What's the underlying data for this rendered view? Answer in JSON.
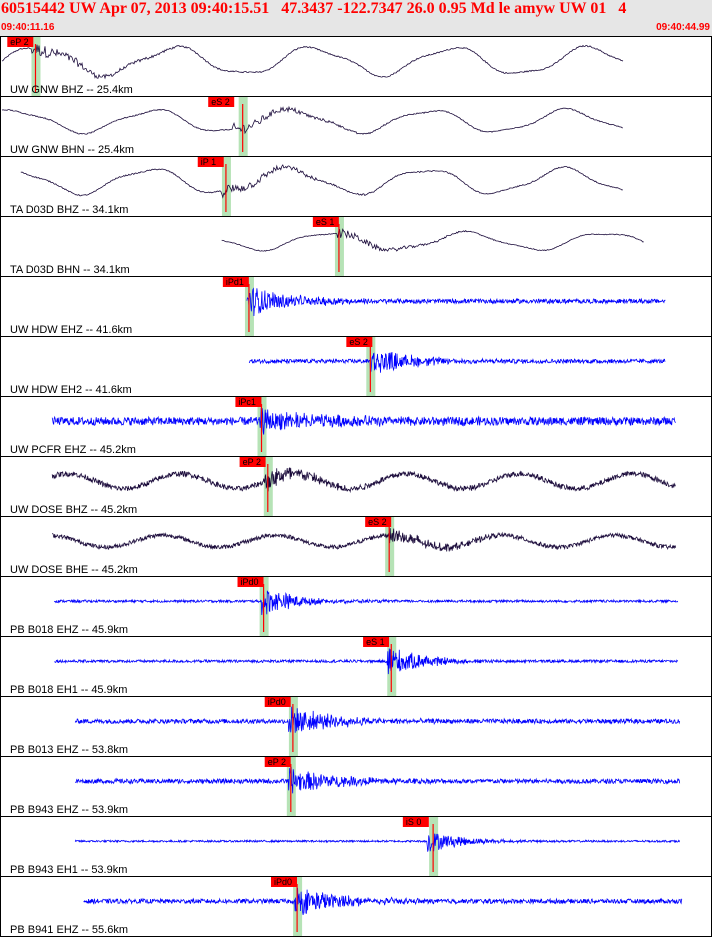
{
  "header": {
    "title": "60515442 UW Apr 07, 2013 09:40:15.51   47.3437 -122.7347 26.0 0.95 Md le amyw UW 01   4",
    "start_time": "09:40:11.16",
    "end_time": "09:40:44.99"
  },
  "colors": {
    "header_bg": "#e6e6e6",
    "header_text": "#ff0000",
    "pick_box": "#ff0000",
    "pick_window": "#b6e3b6",
    "trace_short_period": "#0000ff",
    "trace_broadband": "#1a0a3a",
    "model_curve": "#000000"
  },
  "chart_data": {
    "type": "line",
    "time_start": "09:40:11.16",
    "time_end": "09:40:44.99",
    "traces": [
      {
        "label": "UW GNW BHZ -- 25.4km",
        "pick": "eP 2",
        "pick_t": 1.4,
        "arrival_t": 1.6,
        "color": "broadband",
        "style": "longwave",
        "start_t": 0.0,
        "end_t": 29.7,
        "amp": 0.55
      },
      {
        "label": "UW GNW BHN -- 25.4km",
        "pick": "eS 2",
        "pick_t": 11.0,
        "arrival_t": 11.5,
        "color": "broadband",
        "style": "longwave",
        "start_t": 0.0,
        "end_t": 29.7,
        "amp": 0.45
      },
      {
        "label": "TA D03D BHZ -- 34.1km",
        "pick": "iP 1",
        "pick_t": 10.5,
        "arrival_t": 10.7,
        "color": "broadband",
        "style": "longwave",
        "start_t": 0.9,
        "end_t": 29.7,
        "amp": 0.5
      },
      {
        "label": "TA D03D BHN -- 34.1km",
        "pick": "eS 1",
        "pick_t": 16.0,
        "arrival_t": 16.1,
        "color": "broadband",
        "style": "longwave",
        "start_t": 10.5,
        "end_t": 30.7,
        "amp": 0.35
      },
      {
        "label": "UW HDW EHZ -- 41.6km",
        "pick": "iPd1",
        "pick_t": 11.7,
        "arrival_t": 11.8,
        "color": "short",
        "style": "noise",
        "start_t": 11.7,
        "end_t": 31.7,
        "amp": 0.5
      },
      {
        "label": "UW HDW EH2 -- 41.6km",
        "pick": "eS 2",
        "pick_t": 17.6,
        "arrival_t": 17.6,
        "color": "short",
        "style": "noise",
        "start_t": 11.8,
        "end_t": 31.7,
        "amp": 0.45
      },
      {
        "label": "UW PCFR EHZ -- 45.2km",
        "pick": "iPc1",
        "pick_t": 12.3,
        "arrival_t": 12.4,
        "color": "short",
        "style": "noisy",
        "start_t": 2.4,
        "end_t": 32.2,
        "amp": 0.5
      },
      {
        "label": "UW DOSE BHZ -- 45.2km",
        "pick": "eP 2",
        "pick_t": 12.5,
        "arrival_t": 12.7,
        "color": "broadband",
        "style": "mixed",
        "start_t": 2.4,
        "end_t": 32.2,
        "amp": 0.5
      },
      {
        "label": "UW DOSE BHE -- 45.2km",
        "pick": "eS 2",
        "pick_t": 18.5,
        "arrival_t": 18.5,
        "color": "broadband",
        "style": "mixed",
        "start_t": 2.4,
        "end_t": 32.2,
        "amp": 0.4
      },
      {
        "label": "PB B018 EHZ -- 45.9km",
        "pick": "iPd0",
        "pick_t": 12.4,
        "arrival_t": 12.5,
        "color": "short",
        "style": "quiet",
        "start_t": 2.5,
        "end_t": 32.3,
        "amp": 0.45
      },
      {
        "label": "PB B018 EH1 -- 45.9km",
        "pick": "eS 1",
        "pick_t": 18.4,
        "arrival_t": 18.6,
        "color": "short",
        "style": "quiet",
        "start_t": 2.5,
        "end_t": 32.3,
        "amp": 0.5
      },
      {
        "label": "PB B013 EHZ -- 53.8km",
        "pick": "iPd0",
        "pick_t": 13.7,
        "arrival_t": 13.9,
        "color": "short",
        "style": "noise",
        "start_t": 3.5,
        "end_t": 32.4,
        "amp": 0.5
      },
      {
        "label": "PB B943 EHZ -- 53.9km",
        "pick": "eP 2",
        "pick_t": 13.7,
        "arrival_t": 13.8,
        "color": "short",
        "style": "noise",
        "start_t": 3.5,
        "end_t": 32.4,
        "amp": 0.5
      },
      {
        "label": "PB B943 EH1 -- 53.9km",
        "pick": "iS 0",
        "pick_t": 20.3,
        "arrival_t": 20.6,
        "color": "short",
        "style": "quiet",
        "start_t": 3.5,
        "end_t": 32.4,
        "amp": 0.35
      },
      {
        "label": "PB B941 EHZ -- 55.6km",
        "pick": "iPd0",
        "pick_t": 14.0,
        "arrival_t": 14.1,
        "color": "short",
        "style": "noise",
        "start_t": 3.9,
        "end_t": 32.5,
        "amp": 0.5
      }
    ]
  }
}
